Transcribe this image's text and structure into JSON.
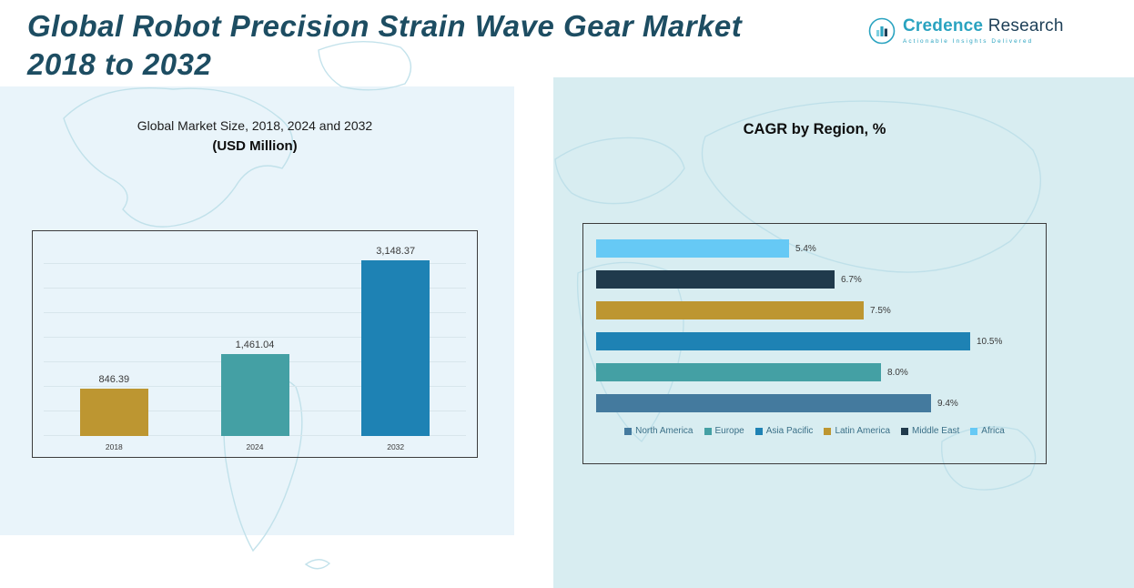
{
  "header": {
    "title_line1": "Global Robot Precision Strain Wave Gear Market",
    "title_line2": "2018 to 2032",
    "logo": {
      "name_primary": "Credence",
      "name_secondary": "Research",
      "tagline": "Actionable Insights Delivered"
    }
  },
  "colors": {
    "gold": "#bd9631",
    "teal": "#44a0a4",
    "blue": "#1e82b4",
    "steel_blue": "#447a9e",
    "dark_navy": "#203a4c",
    "light_blue": "#66c9f5",
    "brand_teal": "#2aa3c0",
    "brand_navy": "#1d3f57",
    "panel_left": "#e9f4fa",
    "panel_right": "#d8edf1"
  },
  "chart_data": [
    {
      "type": "bar",
      "title": "Global Market Size, 2018, 2024 and 2032",
      "subtitle": "(USD Million)",
      "categories": [
        "2018",
        "2024",
        "2032"
      ],
      "values": [
        846.39,
        1461.04,
        3148.37
      ],
      "value_labels": [
        "846.39",
        "1,461.04",
        "3,148.37"
      ],
      "colors": [
        "#bd9631",
        "#44a0a4",
        "#1e82b4"
      ],
      "xlabel": "",
      "ylabel": "USD Million",
      "ylim": [
        0,
        3500
      ],
      "grid": true,
      "legend_position": "none"
    },
    {
      "type": "bar",
      "orientation": "horizontal",
      "title": "CAGR by Region, %",
      "categories": [
        "Africa",
        "Middle East",
        "Latin America",
        "Asia Pacific",
        "Europe",
        "North America"
      ],
      "values": [
        5.4,
        6.7,
        7.5,
        10.5,
        8.0,
        9.4
      ],
      "value_labels": [
        "5.4%",
        "6.7%",
        "7.5%",
        "10.5%",
        "8.0%",
        "9.4%"
      ],
      "colors": [
        "#66c9f5",
        "#203a4c",
        "#bd9631",
        "#1e82b4",
        "#44a0a4",
        "#447a9e"
      ],
      "xlim": [
        0,
        12
      ],
      "grid": false,
      "legend_position": "bottom",
      "legend": [
        "North America",
        "Europe",
        "Asia Pacific",
        "Latin America",
        "Middle East",
        "Africa"
      ],
      "legend_colors": [
        "#447a9e",
        "#44a0a4",
        "#1e82b4",
        "#bd9631",
        "#203a4c",
        "#66c9f5"
      ]
    }
  ]
}
